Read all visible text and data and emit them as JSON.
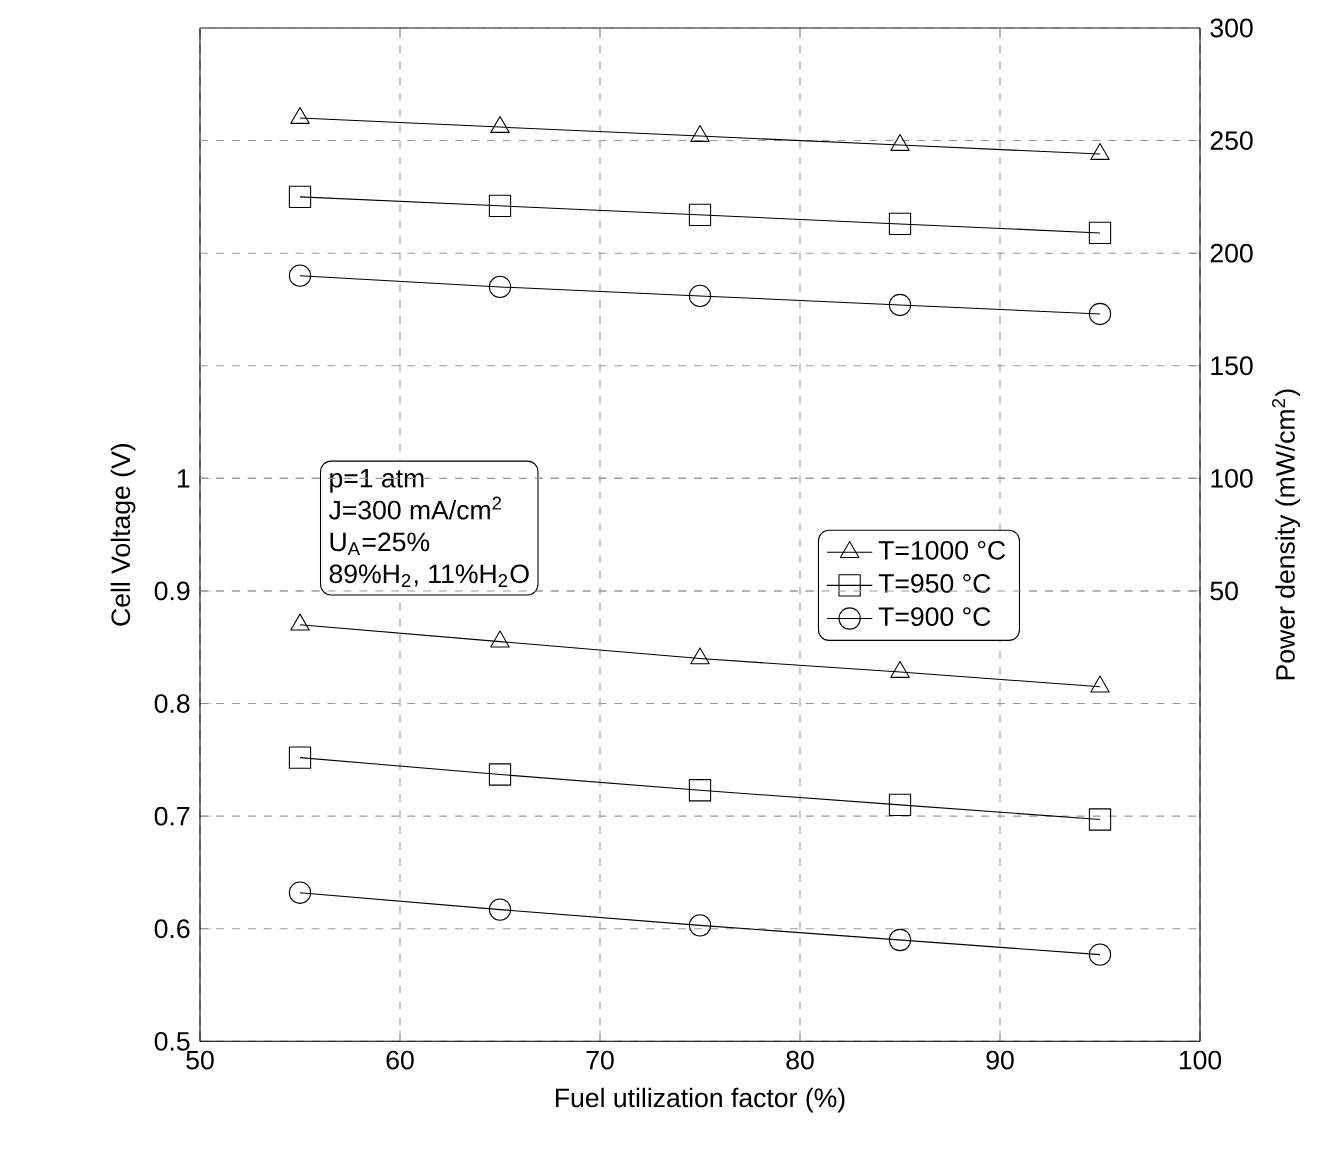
{
  "chart_data": {
    "type": "line",
    "xlabel": "Fuel utilization factor (%)",
    "ylabel": "Cell Voltage (V)",
    "y2label": "Power density (mW/cm$^{2}$)",
    "x": [
      55,
      65,
      75,
      85,
      95
    ],
    "series": [
      {
        "name": "T=1000 °C",
        "color": "#000000",
        "marker": "triangle",
        "values": [
          0.87,
          0.855,
          0.84,
          0.828,
          0.815
        ]
      },
      {
        "name": "T=950 °C",
        "color": "#000000",
        "marker": "square",
        "values": [
          0.752,
          0.737,
          0.723,
          0.71,
          0.697
        ]
      },
      {
        "name": "T=900 °C",
        "color": "#000000",
        "marker": "circle",
        "values": [
          0.632,
          0.617,
          0.603,
          0.59,
          0.577
        ]
      },
      {
        "color": "#000000",
        "marker": "triangle",
        "axis": "y2",
        "values": [
          260,
          256,
          252,
          248,
          244
        ]
      },
      {
        "color": "#000000",
        "marker": "square",
        "axis": "y2",
        "values": [
          225,
          221,
          217,
          213,
          209
        ]
      },
      {
        "color": "#000000",
        "marker": "circle",
        "axis": "y2",
        "values": [
          190,
          185,
          181,
          177,
          173
        ]
      }
    ],
    "xlim": [
      50,
      100
    ],
    "xticks": [
      50,
      60,
      70,
      80,
      90,
      100
    ],
    "ylim": [
      0.5,
      1.4
    ],
    "yticks": [
      0.5,
      0.6,
      0.7,
      0.8,
      0.9,
      1
    ],
    "y2lim": [
      -150,
      300
    ],
    "y2ticks": [
      50,
      100,
      150,
      200,
      250,
      300
    ],
    "annotations": [
      "p=1 atm",
      "J=300 mA/cm$^{2}$",
      "U$_{A}$=25%",
      "89%H$_{2}$, 11%H$_{2}$O"
    ],
    "grid": true,
    "legend": "right",
    "line_style": "solid"
  }
}
